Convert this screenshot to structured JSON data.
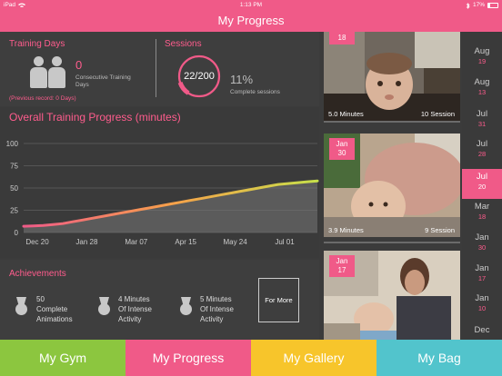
{
  "status_bar": {
    "device": "iPad",
    "time": "1:13 PM",
    "battery": "17%",
    "wifi_icon": "wifi-icon",
    "bluetooth_icon": "bluetooth-icon"
  },
  "header": {
    "title": "My Progress"
  },
  "training_days": {
    "title": "Training Days",
    "value": "0",
    "label": "Consecutive Training Days",
    "previous_record": "(Previous record: 0 Days)"
  },
  "sessions": {
    "title": "Sessions",
    "count": "22/200",
    "progress": 0.11,
    "percent": "11%",
    "percent_label": "Complete sessions"
  },
  "chart_data": {
    "type": "area",
    "title": "Overall Training Progress (minutes)",
    "xlabel": "",
    "ylabel": "",
    "x_ticks": [
      "Dec 20",
      "Jan 28",
      "Mar 07",
      "Apr 15",
      "May 24",
      "Jul 01"
    ],
    "y_ticks": [
      0,
      25,
      50,
      75,
      100
    ],
    "ylim": [
      0,
      100
    ],
    "grid": true,
    "series": [
      {
        "values": [
          7,
          7.5,
          8,
          9,
          10,
          12,
          14,
          16,
          18,
          20,
          22,
          24,
          26,
          28,
          30,
          32,
          34,
          36,
          38,
          40,
          42,
          44,
          46,
          48,
          50,
          52,
          54,
          55,
          56,
          57,
          58
        ]
      }
    ]
  },
  "achievements": {
    "title": "Achievements",
    "items": [
      {
        "line1": "50",
        "line2": "Complete",
        "line3": "Animations"
      },
      {
        "line1": "4 Minutes",
        "line2": "Of Intense",
        "line3": "Activity"
      },
      {
        "line1": "5 Minutes",
        "line2": "Of Intense",
        "line3": "Activity"
      }
    ],
    "more_label": "For More"
  },
  "photos": [
    {
      "date_top": "18",
      "date_bottom": "",
      "minutes": "5.0 Minutes",
      "session": "10 Session"
    },
    {
      "date_top": "Jan",
      "date_bottom": "30",
      "minutes": "3.9 Minutes",
      "session": "9 Session"
    },
    {
      "date_top": "Jan",
      "date_bottom": "17",
      "minutes": "",
      "session": ""
    }
  ],
  "months": [
    {
      "month": "Aug",
      "day": "19"
    },
    {
      "month": "Aug",
      "day": "13"
    },
    {
      "month": "Jul",
      "day": "31"
    },
    {
      "month": "Jul",
      "day": "28"
    },
    {
      "month": "Jul",
      "day": "20",
      "selected": true
    },
    {
      "month": "Mar",
      "day": "18"
    },
    {
      "month": "Jan",
      "day": "30"
    },
    {
      "month": "Jan",
      "day": "17"
    },
    {
      "month": "Jan",
      "day": "10"
    },
    {
      "month": "Dec",
      "day": ""
    }
  ],
  "tabs": [
    {
      "label": "My Gym",
      "color": "#8cc63f"
    },
    {
      "label": "My Progress",
      "color": "#f05a88"
    },
    {
      "label": "My Gallery",
      "color": "#f7c52b"
    },
    {
      "label": "My Bag",
      "color": "#52c4cc"
    }
  ],
  "colors": {
    "accent": "#f05a88",
    "text_pink": "#ff5c8d"
  }
}
